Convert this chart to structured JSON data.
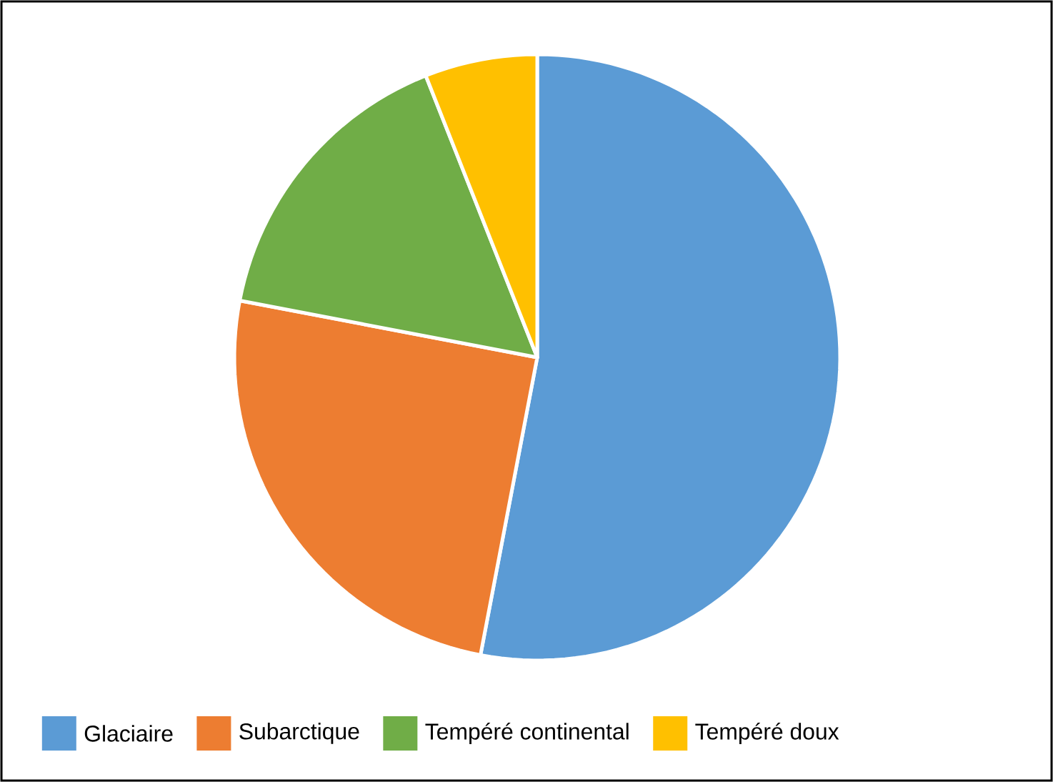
{
  "chart_data": {
    "type": "pie",
    "categories": [
      "Glaciaire",
      "Subarctique",
      "Tempéré continental",
      "Tempéré doux"
    ],
    "values": [
      53,
      25,
      16,
      6
    ],
    "colors": [
      "#5b9bd5",
      "#ed7d31",
      "#70ad47",
      "#ffc000"
    ],
    "legend": "bottom"
  }
}
